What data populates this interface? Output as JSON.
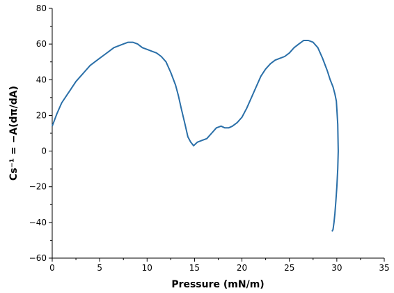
{
  "chart_data": {
    "type": "line",
    "xlabel": "Pressure (mN/m)",
    "ylabel": "Cs⁻¹ = −A(dπ/dA)",
    "xlim": [
      0,
      35
    ],
    "ylim": [
      -60,
      80
    ],
    "x_ticks": [
      "0",
      "5",
      "10",
      "15",
      "20",
      "25",
      "30",
      "35"
    ],
    "y_ticks": [
      "−60",
      "−40",
      "−20",
      "0",
      "20",
      "40",
      "60",
      "80"
    ],
    "grid": false,
    "series": [
      {
        "color": "#2a6fa8",
        "x": [
          0,
          0.5,
          1,
          1.5,
          2,
          2.5,
          3,
          3.5,
          4,
          4.5,
          5,
          5.5,
          6,
          6.5,
          7,
          7.5,
          8,
          8.5,
          9,
          9.5,
          10,
          10.5,
          11,
          11.5,
          12,
          12.5,
          13,
          13.3,
          13.6,
          14,
          14.3,
          14.6,
          14.9,
          15.3,
          15.8,
          16.3,
          16.8,
          17.3,
          17.8,
          18.2,
          18.6,
          19,
          19.5,
          20,
          20.5,
          21,
          21.5,
          22,
          22.5,
          23,
          23.5,
          24,
          24.5,
          25,
          25.5,
          26,
          26.5,
          27,
          27.5,
          28,
          28.5,
          29,
          29.3,
          29.6,
          29.8,
          29.95,
          30.1,
          30.15,
          30.1,
          30.0,
          29.9,
          29.8,
          29.7,
          29.6,
          29.5
        ],
        "y": [
          14,
          21,
          27,
          31,
          35,
          39,
          42,
          45,
          48,
          50,
          52,
          54,
          56,
          58,
          59,
          60,
          61,
          61,
          60,
          58,
          57,
          56,
          55,
          53,
          50,
          44,
          37,
          31,
          24,
          15,
          8,
          5,
          3,
          5,
          6,
          7,
          10,
          13,
          14,
          13,
          13,
          14,
          16,
          19,
          24,
          30,
          36,
          42,
          46,
          49,
          51,
          52,
          53,
          55,
          58,
          60,
          62,
          62,
          61,
          58,
          52,
          45,
          40,
          36,
          32,
          28,
          15,
          0,
          -10,
          -20,
          -28,
          -35,
          -40,
          -44,
          -45
        ]
      }
    ]
  }
}
